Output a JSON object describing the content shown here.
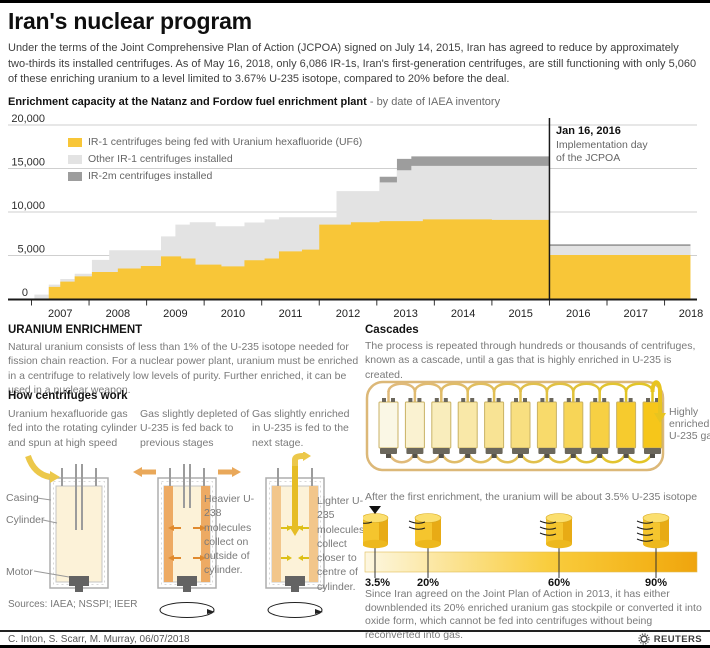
{
  "title": "Iran's nuclear program",
  "intro": "Under the terms of the Joint Comprehensive Plan of Action (JCPOA) signed on July 14, 2015, Iran has agreed to reduce by approximately two-thirds its installed centrifuges. As of May 16, 2018, only 6,086 IR-1s, Iran's first-generation centrifuges, are still functioning with only 5,060 of these enriching uranium to a level limited to 3.67% U-235 isotope, compared to 20% before the deal.",
  "chart": {
    "title_bold": "Enrichment capacity at the Natanz and Fordow fuel enrichment plant",
    "title_note": "- by date of IAEA inventory",
    "annotation_date": "Jan 16, 2016",
    "annotation_line1": "Implementation day",
    "annotation_line2": "of the JCPOA"
  },
  "chart_data": {
    "type": "area",
    "title": "Enrichment capacity at the Natanz and Fordow fuel enrichment plant - by date of IAEA inventory",
    "note": "step areas; values are cumulative stack tops, number of centrifuges",
    "x_range": [
      2006.78,
      2018.45
    ],
    "ylim": [
      0,
      20000
    ],
    "grid": true,
    "legend_position": "upper-left-inside",
    "y_ticks": [
      {
        "v": 20000,
        "label": "20,000"
      },
      {
        "v": 15000,
        "label": "15,000"
      },
      {
        "v": 10000,
        "label": "10,000"
      },
      {
        "v": 5000,
        "label": "5,000"
      },
      {
        "v": 0,
        "label": "0"
      }
    ],
    "x_ticks": [
      2007,
      2008,
      2009,
      2010,
      2011,
      2012,
      2013,
      2014,
      2015,
      2016,
      2017,
      2018
    ],
    "marker_x": 2016.0,
    "series": [
      {
        "name": "IR-1 centrifuges being fed with Uranium hexafluoride (UF6)",
        "color": "#f8c638",
        "steps": [
          [
            2007.3,
            1400
          ],
          [
            2007.5,
            2000
          ],
          [
            2007.75,
            2600
          ],
          [
            2008.05,
            3100
          ],
          [
            2008.5,
            3500
          ],
          [
            2008.9,
            3800
          ],
          [
            2009.25,
            4900
          ],
          [
            2009.6,
            4650
          ],
          [
            2009.85,
            3950
          ],
          [
            2010.3,
            3750
          ],
          [
            2010.7,
            4450
          ],
          [
            2011.05,
            4650
          ],
          [
            2011.3,
            5480
          ],
          [
            2011.7,
            5670
          ],
          [
            2012.0,
            8550
          ],
          [
            2012.55,
            8820
          ],
          [
            2013.05,
            8950
          ],
          [
            2013.8,
            9150
          ],
          [
            2015.0,
            9100
          ],
          [
            2016.0,
            5060
          ],
          [
            2018.45,
            5060
          ]
        ]
      },
      {
        "name": "Other IR-1 centrifuges installed",
        "color": "#e3e3e3",
        "steps": [
          [
            2007.05,
            500
          ],
          [
            2007.3,
            1650
          ],
          [
            2007.5,
            2300
          ],
          [
            2007.75,
            2900
          ],
          [
            2008.05,
            4500
          ],
          [
            2008.35,
            5600
          ],
          [
            2009.25,
            7200
          ],
          [
            2009.5,
            8550
          ],
          [
            2009.75,
            8820
          ],
          [
            2010.2,
            8360
          ],
          [
            2010.7,
            8800
          ],
          [
            2011.05,
            9150
          ],
          [
            2011.3,
            9400
          ],
          [
            2012.3,
            12400
          ],
          [
            2013.05,
            13400
          ],
          [
            2013.35,
            14800
          ],
          [
            2013.6,
            15300
          ],
          [
            2016.0,
            6086
          ],
          [
            2018.45,
            6086
          ]
        ]
      },
      {
        "name": "IR-2m centrifuges installed",
        "color": "#9d9d9d",
        "steps": [
          [
            2013.05,
            14050
          ],
          [
            2013.35,
            16100
          ],
          [
            2013.6,
            16400
          ],
          [
            2016.0,
            6300
          ],
          [
            2018.45,
            6300
          ]
        ]
      }
    ]
  },
  "uranium_enrichment": {
    "heading": "URANIUM ENRICHMENT",
    "body": "Natural uranium consists of less than 1% of the U-235 isotope needed for fission chain reaction. For a nuclear power plant, uranium must be enriched in a centrifuge to relatively low levels of purity. Further enriched, it can be used in a nuclear weapon."
  },
  "how_centrifuges": {
    "heading": "How centrifuges work",
    "step1": "Uranium hexafluoride gas fed into the rotating cylinder and spun at high speed",
    "step2": "Gas slightly depleted of U-235 is fed back to previous stages",
    "step3": "Gas slightly enriched in U-235 is fed to the next stage.",
    "label_casing": "Casing",
    "label_cylinder": "Cylinder",
    "label_motor": "Motor",
    "note_heavier": "Heavier U-238 molecules collect on outside of cylinder.",
    "note_lighter": "Lighter U-235 molecules collect closer to centre of cylinder."
  },
  "cascades": {
    "heading": "Cascades",
    "body": "The process is repeated through hundreds or thousands of centrifuges, known as a cascade, until a gas that is highly enriched in U-235 is created.",
    "cylinders": 11,
    "output_label": [
      "Highly",
      "enriched",
      "U-235 gas"
    ],
    "after_note": "After the first enrichment, the uranium will be about 3.5% U-235 isotope",
    "levels": [
      {
        "label": "3.5%"
      },
      {
        "label": "20%"
      },
      {
        "label": "60%"
      },
      {
        "label": "90%"
      }
    ],
    "bottom_note": "Since Iran agreed on the Joint Plan of Action in 2013, it has either downblended its 20% enriched uranium gas stockpile or converted it into oxide form, which cannot be fed into centrifuges without being reconverted into gas."
  },
  "footer": {
    "sources": "Sources: IAEA; NSSPI; IEER",
    "credit": "C. Inton, S. Scarr, M. Murray, 06/07/2018",
    "brand": "REUTERS"
  },
  "colors": {
    "accent_yellow": "#f8c638",
    "light_gray_area": "#e3e3e3",
    "dark_gray_area": "#9d9d9d",
    "marker_line": "#1a1a1a"
  }
}
